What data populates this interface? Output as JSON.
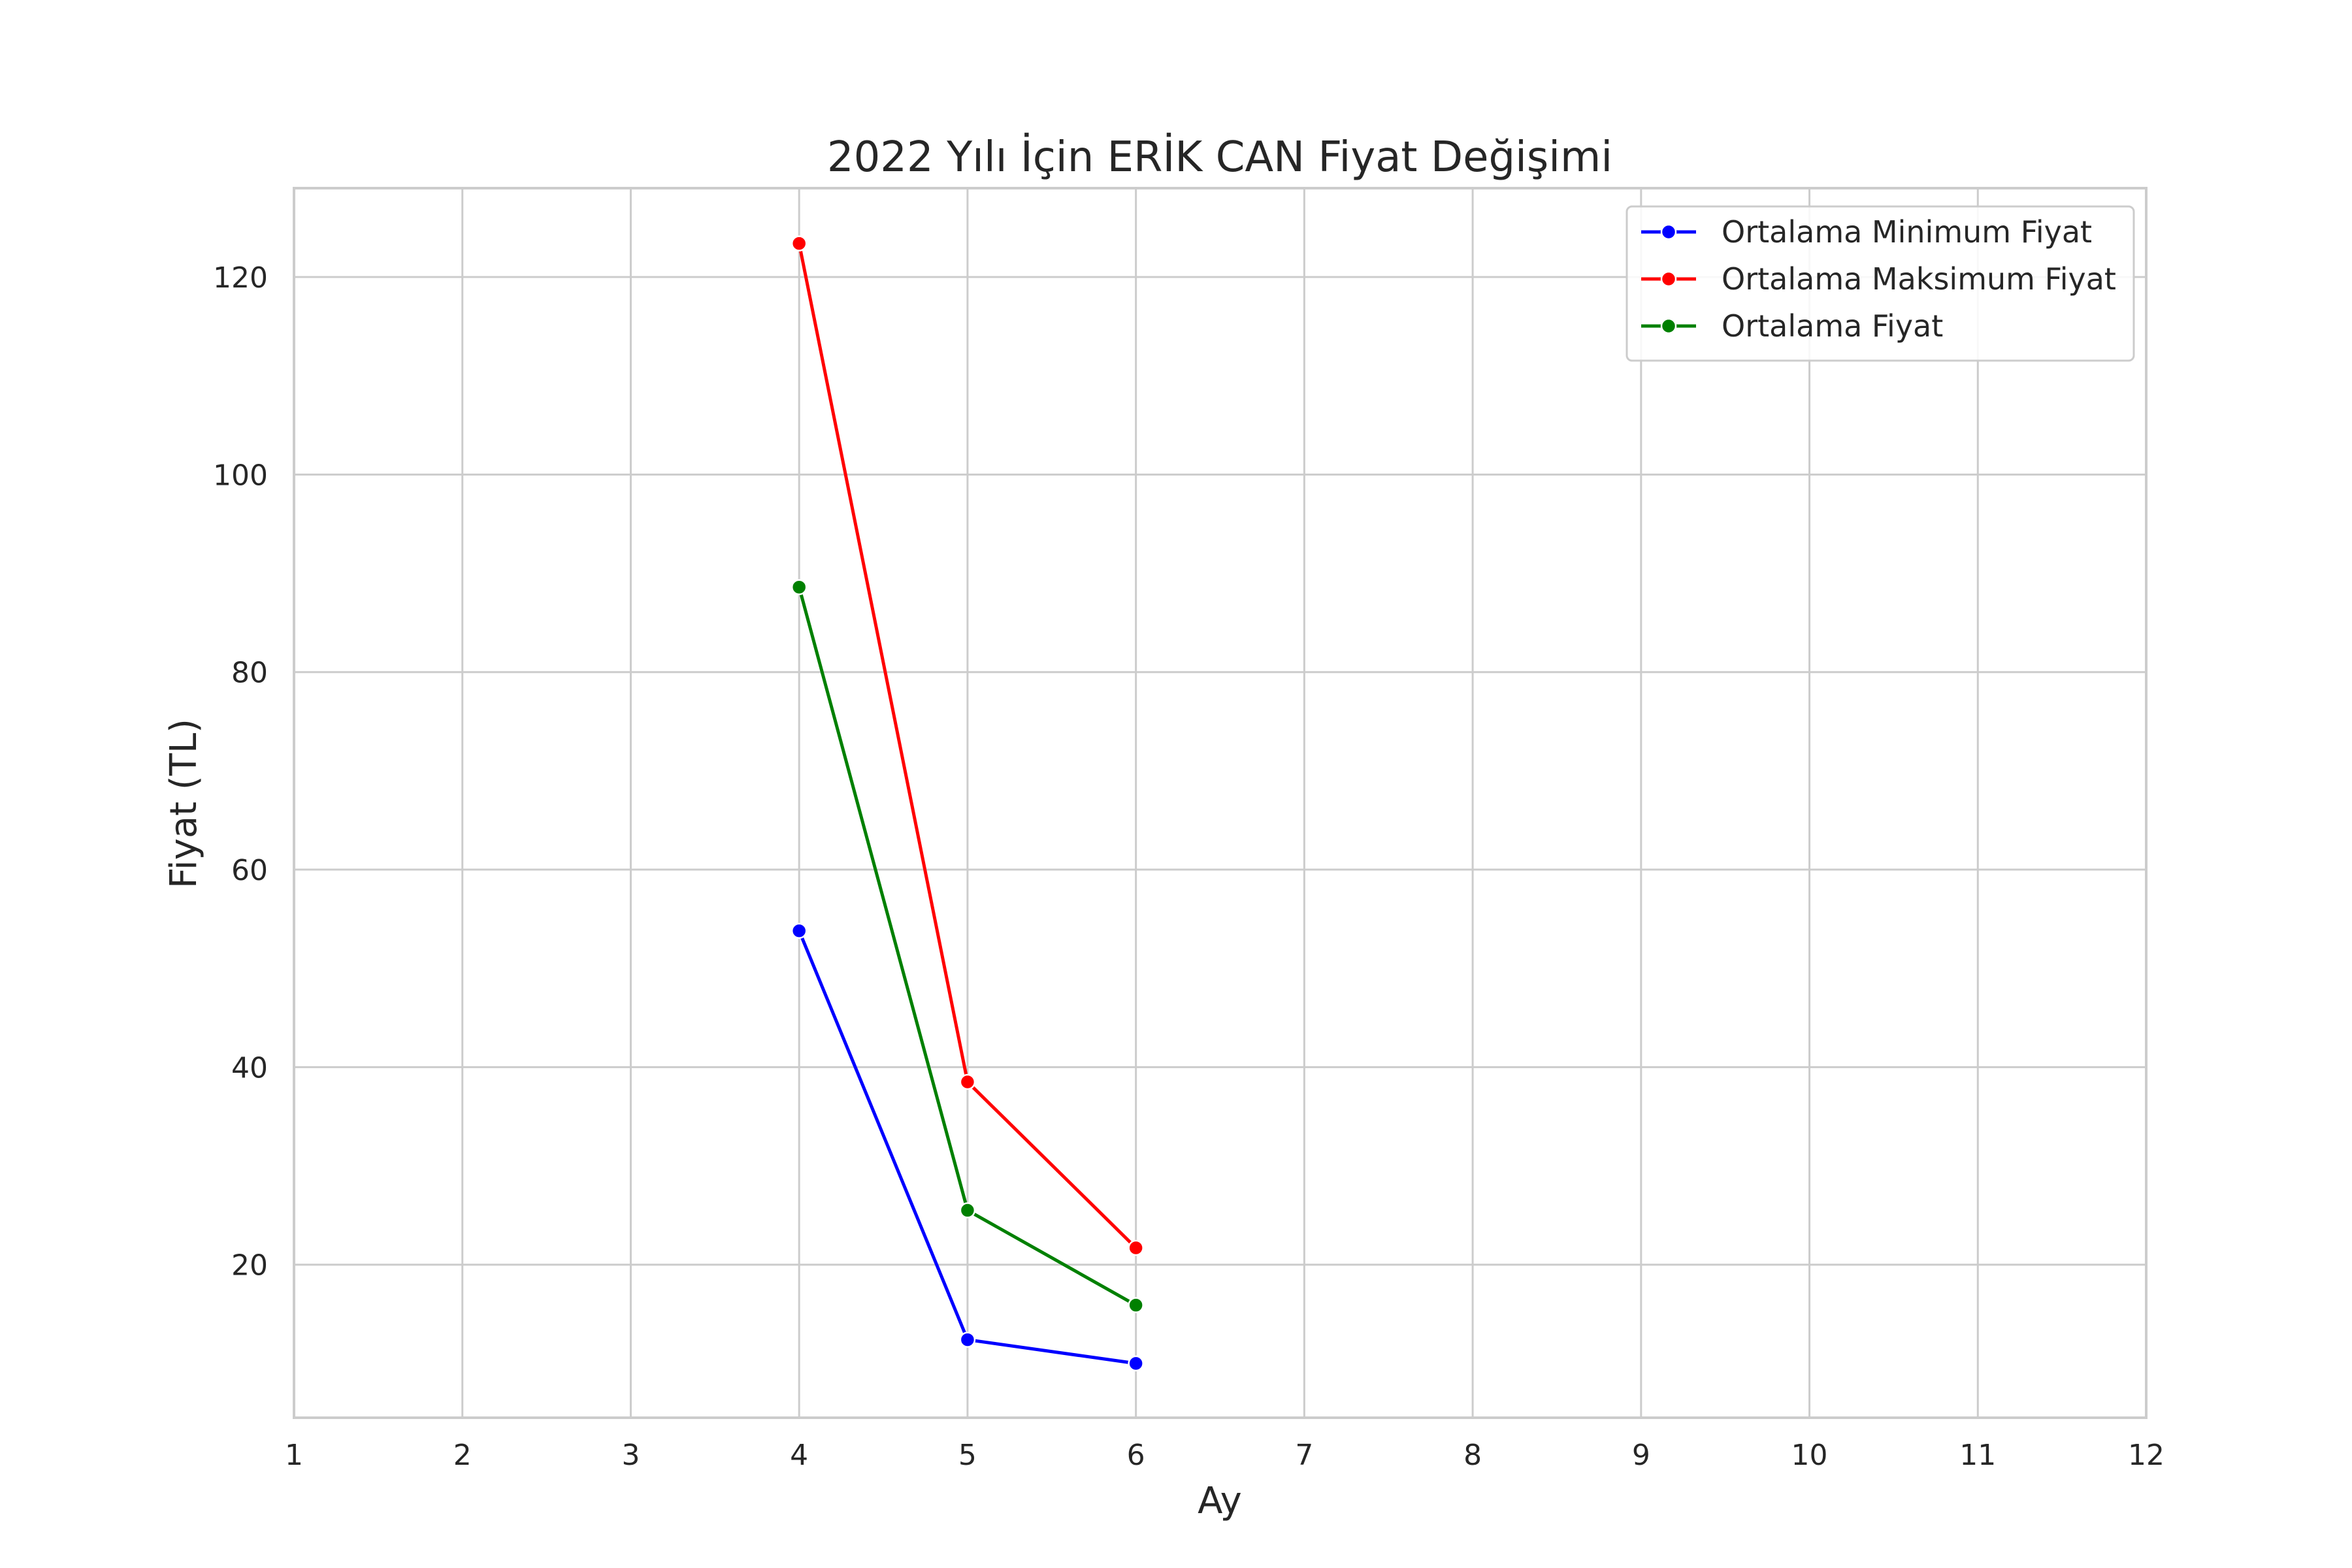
{
  "chart_data": {
    "type": "line",
    "title": "2022 Yılı İçin ERİK CAN Fiyat Değişimi",
    "xlabel": "Ay",
    "ylabel": "Fiyat (TL)",
    "xlim": [
      1,
      12
    ],
    "ylim": [
      4.5,
      129
    ],
    "xticks": [
      1,
      2,
      3,
      4,
      5,
      6,
      7,
      8,
      9,
      10,
      11,
      12
    ],
    "yticks": [
      20,
      40,
      60,
      80,
      100,
      120
    ],
    "grid": true,
    "legend_position": "top-right",
    "series": [
      {
        "name": "Ortalama Minimum Fiyat",
        "color": "#0000ff",
        "marker": "circle",
        "x": [
          4,
          5,
          6
        ],
        "y": [
          53.8,
          12.4,
          10.0
        ]
      },
      {
        "name": "Ortalama Maksimum Fiyat",
        "color": "#ff0000",
        "marker": "circle",
        "x": [
          4,
          5,
          6
        ],
        "y": [
          123.4,
          38.5,
          21.7
        ]
      },
      {
        "name": "Ortalama Fiyat",
        "color": "#008000",
        "marker": "circle",
        "x": [
          4,
          5,
          6
        ],
        "y": [
          88.6,
          25.5,
          15.9
        ]
      }
    ]
  }
}
